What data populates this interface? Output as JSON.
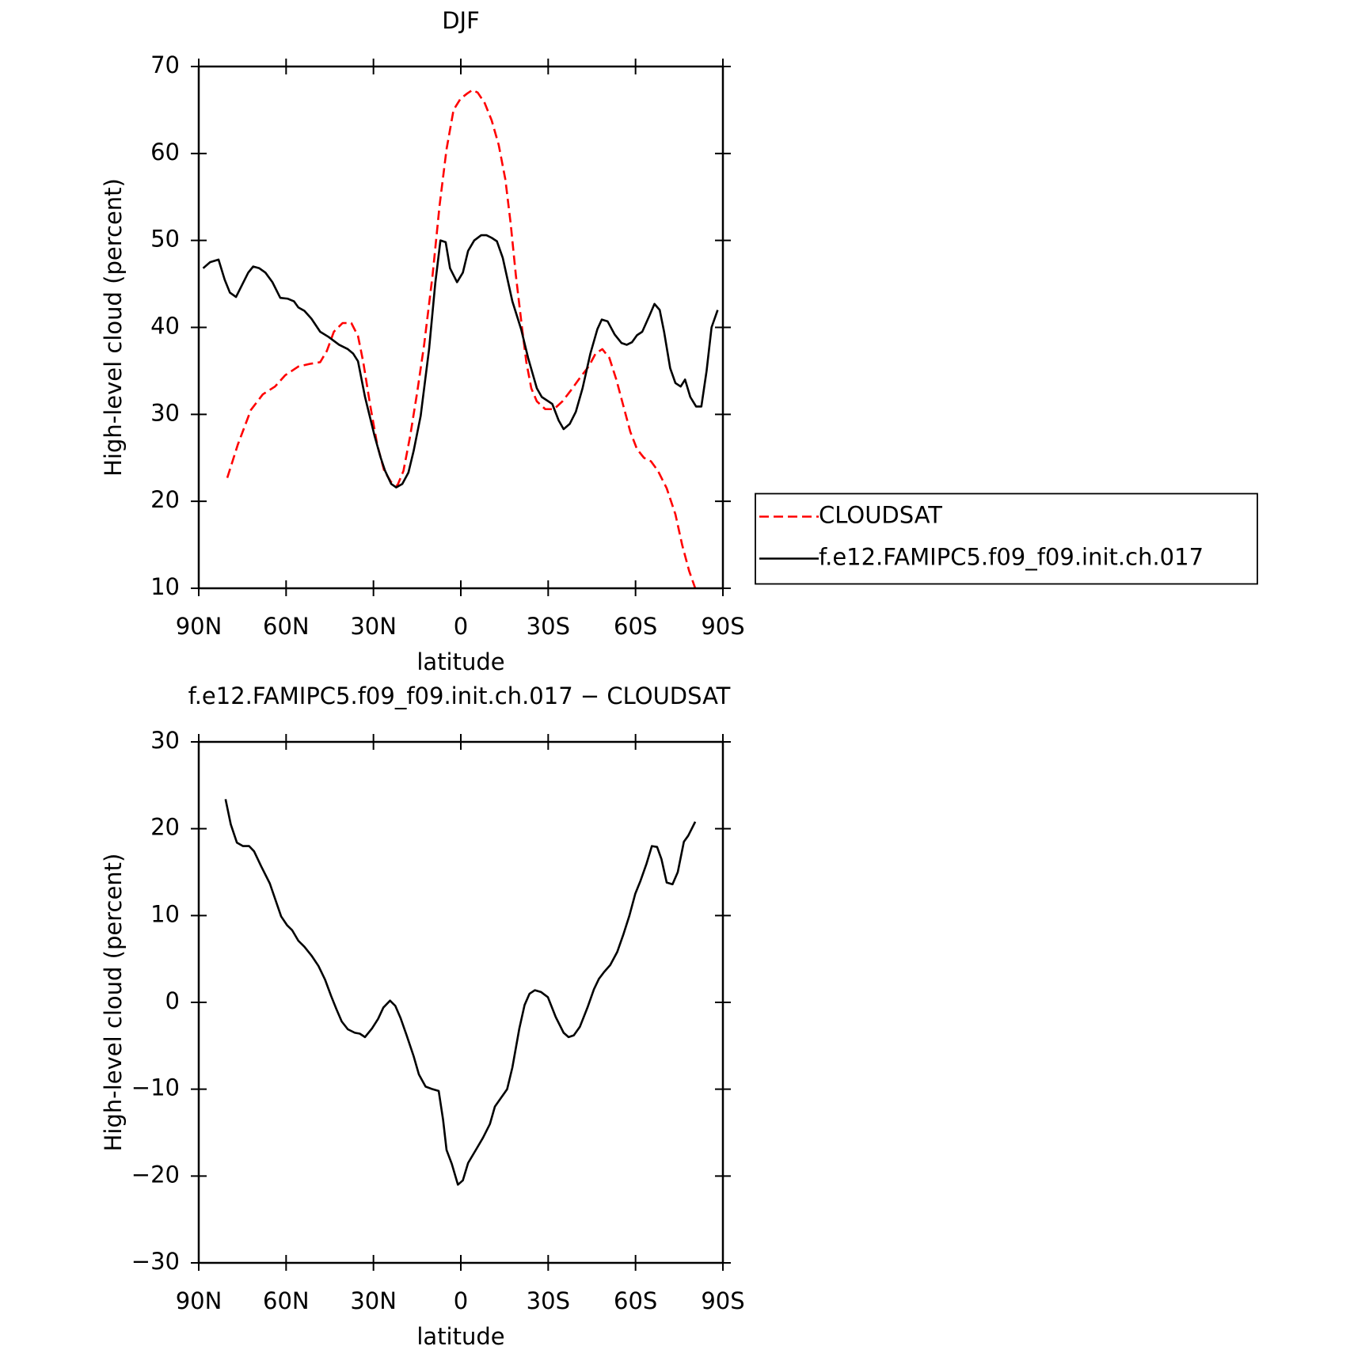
{
  "chart_data": [
    {
      "type": "line",
      "title": "DJF",
      "xlabel": "latitude",
      "ylabel": "High-level cloud (percent)",
      "xlim": [
        90,
        -90
      ],
      "xticks": [
        {
          "value": 90,
          "label": "90N"
        },
        {
          "value": 60,
          "label": "60N"
        },
        {
          "value": 30,
          "label": "30N"
        },
        0,
        {
          "value": -30,
          "label": "30S"
        },
        {
          "value": -60,
          "label": "60S"
        },
        {
          "value": -90,
          "label": "90S"
        }
      ],
      "ylim": [
        10,
        70
      ],
      "yticks": [
        10,
        20,
        30,
        40,
        50,
        60,
        70
      ],
      "legend": "right",
      "series": [
        {
          "name": "CLOUDSAT",
          "color": "#ff0000",
          "line_style": "dashed",
          "x": [
            80.2,
            76.6,
            72.1,
            68.0,
            63.8,
            60.3,
            55.8,
            51.9,
            48.3,
            46.0,
            43.6,
            40.6,
            37.6,
            35.3,
            33.5,
            31.1,
            28.7,
            26.3,
            23.9,
            21.8,
            19.7,
            17.4,
            15.0,
            12.6,
            9.7,
            7.3,
            4.9,
            2.5,
            0.1,
            -2.2,
            -4.0,
            -5.8,
            -8.2,
            -10.6,
            -13.0,
            -15.3,
            -17.1,
            -18.9,
            -21.0,
            -22.5,
            -24.2,
            -26.1,
            -29.0,
            -32.0,
            -34.9,
            -37.9,
            -40.9,
            -43.9,
            -46.3,
            -48.6,
            -51.0,
            -53.4,
            -55.8,
            -58.2,
            -60.5,
            -62.9,
            -65.3,
            -67.7,
            -70.7,
            -73.7,
            -76.0,
            -78.4,
            -80.5
          ],
          "values": [
            22.7,
            26.5,
            30.5,
            32.3,
            33.2,
            34.5,
            35.5,
            35.8,
            36.0,
            37.3,
            39.5,
            40.5,
            40.5,
            39.0,
            36.0,
            31.0,
            26.5,
            23.5,
            22.2,
            21.8,
            23.5,
            27.5,
            32.5,
            38.0,
            46.0,
            54.0,
            60.5,
            65.0,
            66.3,
            66.9,
            67.3,
            67.0,
            65.8,
            63.8,
            61.0,
            57.0,
            52.0,
            46.0,
            40.0,
            36.0,
            33.0,
            31.5,
            30.6,
            30.6,
            31.5,
            32.8,
            34.2,
            35.5,
            37.0,
            37.5,
            36.5,
            34.0,
            31.0,
            28.0,
            26.0,
            25.0,
            24.6,
            23.5,
            21.5,
            18.5,
            15.0,
            12.0,
            10.0
          ]
        },
        {
          "name": "f.e12.FAMIPC5.f09_f09.init.ch.017",
          "color": "#000000",
          "line_style": "solid",
          "x": [
            88.5,
            86.1,
            83.2,
            81.1,
            79.3,
            77.2,
            73.0,
            71.3,
            69.2,
            67.1,
            64.7,
            62.0,
            59.4,
            57.3,
            55.8,
            53.7,
            51.3,
            48.3,
            45.4,
            41.8,
            38.8,
            37.0,
            35.3,
            32.9,
            29.6,
            27.5,
            26.0,
            23.9,
            22.2,
            20.1,
            18.0,
            16.2,
            13.8,
            10.9,
            8.8,
            7.0,
            5.2,
            3.7,
            1.3,
            -0.7,
            -2.5,
            -4.6,
            -7.0,
            -8.8,
            -10.6,
            -12.4,
            -14.4,
            -17.7,
            -20.7,
            -23.1,
            -26.1,
            -27.8,
            -31.4,
            -33.6,
            -35.3,
            -37.4,
            -39.5,
            -41.8,
            -44.5,
            -46.9,
            -48.4,
            -50.4,
            -52.8,
            -55.2,
            -57.0,
            -58.8,
            -60.5,
            -62.3,
            -64.7,
            -66.5,
            -68.3,
            -69.8,
            -71.9,
            -73.7,
            -75.5,
            -77.0,
            -78.8,
            -80.8,
            -82.6,
            -84.4,
            -86.1,
            -88.2
          ],
          "values": [
            46.8,
            47.5,
            47.8,
            45.5,
            44.0,
            43.5,
            46.3,
            47.0,
            46.8,
            46.3,
            45.2,
            43.4,
            43.3,
            43.0,
            42.3,
            41.9,
            41.0,
            39.5,
            38.9,
            38.0,
            37.5,
            37.0,
            36.1,
            32.0,
            27.5,
            25.0,
            23.5,
            22.0,
            21.6,
            22.0,
            23.3,
            25.8,
            29.8,
            37.5,
            45.0,
            50.0,
            49.8,
            46.8,
            45.2,
            46.3,
            48.8,
            50.0,
            50.6,
            50.6,
            50.3,
            49.9,
            48.0,
            43.0,
            39.8,
            36.5,
            33.0,
            32.0,
            31.2,
            29.3,
            28.3,
            28.9,
            30.3,
            33.0,
            37.0,
            39.8,
            40.9,
            40.7,
            39.2,
            38.2,
            38.0,
            38.3,
            39.1,
            39.5,
            41.3,
            42.7,
            42.0,
            39.5,
            35.3,
            33.6,
            33.2,
            34.0,
            32.0,
            30.9,
            30.9,
            35.0,
            40.0,
            42.0
          ]
        }
      ]
    },
    {
      "type": "line",
      "title": "f.e12.FAMIPC5.f09_f09.init.ch.017 − CLOUDSAT",
      "xlabel": "latitude",
      "ylabel": "High-level cloud (percent)",
      "xlim": [
        90,
        -90
      ],
      "xticks": [
        {
          "value": 90,
          "label": "90N"
        },
        {
          "value": 60,
          "label": "60N"
        },
        {
          "value": 30,
          "label": "30N"
        },
        0,
        {
          "value": -30,
          "label": "30S"
        },
        {
          "value": -60,
          "label": "60S"
        },
        {
          "value": -90,
          "label": "90S"
        }
      ],
      "ylim": [
        -30,
        30
      ],
      "yticks": [
        {
          "value": -30,
          "label": "−30"
        },
        {
          "value": -20,
          "label": "−20"
        },
        {
          "value": -10,
          "label": "−10"
        },
        0,
        10,
        20,
        30
      ],
      "series": [
        {
          "color": "#000000",
          "line_style": "solid",
          "x": [
            80.8,
            79.0,
            76.9,
            74.8,
            72.7,
            71.0,
            68.6,
            65.6,
            61.7,
            59.7,
            57.9,
            55.8,
            53.7,
            51.3,
            48.9,
            46.6,
            44.5,
            42.7,
            40.9,
            38.8,
            36.4,
            34.7,
            32.9,
            30.5,
            28.4,
            26.6,
            24.3,
            22.5,
            20.7,
            18.6,
            16.2,
            14.4,
            12.1,
            9.7,
            7.6,
            6.1,
            4.9,
            3.1,
            1.0,
            -0.7,
            -2.5,
            -5.5,
            -7.6,
            -10.0,
            -11.7,
            -15.9,
            -17.7,
            -20.1,
            -21.9,
            -23.6,
            -25.4,
            -27.5,
            -29.9,
            -32.6,
            -35.3,
            -37.0,
            -38.8,
            -40.9,
            -43.6,
            -45.7,
            -47.4,
            -49.2,
            -51.3,
            -53.7,
            -55.8,
            -57.9,
            -59.9,
            -61.7,
            -63.8,
            -65.6,
            -67.4,
            -68.9,
            -70.7,
            -72.7,
            -74.5,
            -76.6,
            -78.1,
            -80.5
          ],
          "values": [
            23.4,
            20.5,
            18.4,
            18.0,
            18.0,
            17.4,
            15.7,
            13.7,
            9.9,
            8.9,
            8.3,
            7.1,
            6.4,
            5.4,
            4.2,
            2.6,
            0.7,
            -0.8,
            -2.2,
            -3.1,
            -3.5,
            -3.6,
            -4.0,
            -3.0,
            -1.9,
            -0.6,
            0.2,
            -0.4,
            -1.8,
            -3.8,
            -6.2,
            -8.3,
            -9.7,
            -10.0,
            -10.2,
            -13.5,
            -17.0,
            -18.6,
            -21.0,
            -20.5,
            -18.5,
            -16.8,
            -15.6,
            -14.0,
            -12.0,
            -10.0,
            -7.5,
            -3.0,
            -0.3,
            1.0,
            1.4,
            1.2,
            0.6,
            -1.7,
            -3.5,
            -4.0,
            -3.8,
            -2.8,
            -0.5,
            1.5,
            2.7,
            3.5,
            4.3,
            5.8,
            7.8,
            10.0,
            12.5,
            14.0,
            16.0,
            18.0,
            17.9,
            16.5,
            13.8,
            13.6,
            15.0,
            18.5,
            19.2,
            20.8
          ]
        }
      ]
    }
  ]
}
